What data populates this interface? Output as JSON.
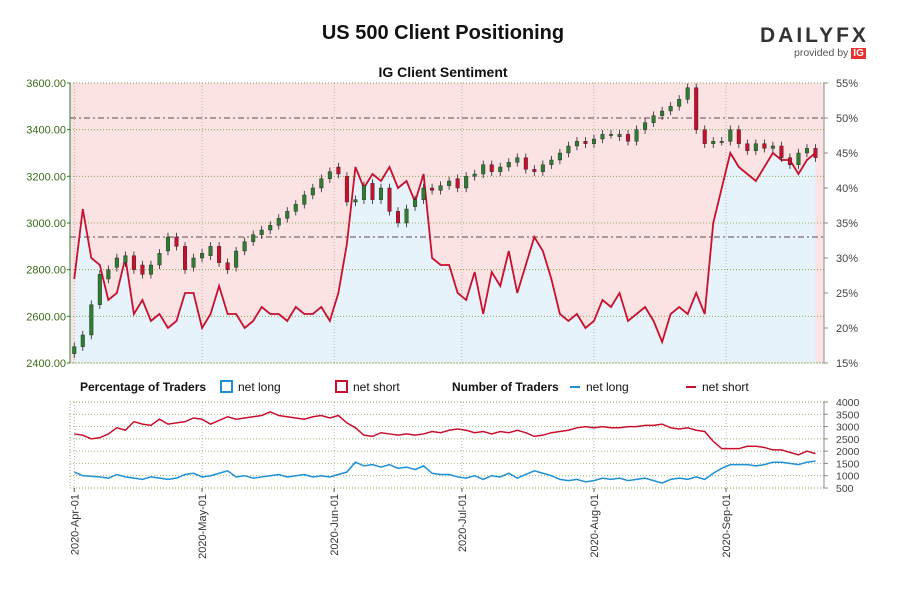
{
  "title": "US 500 Client Positioning",
  "logo": {
    "brand_a": "DAILY",
    "brand_b": "FX",
    "provided": "provided by",
    "ig": "IG"
  },
  "chart_data": {
    "type": "line",
    "subtitle": "IG Client Sentiment",
    "price_axis": {
      "ticks": [
        "2400.00",
        "2600.00",
        "2800.00",
        "3000.00",
        "3200.00",
        "3400.00",
        "3600.00"
      ],
      "ylim": [
        2400,
        3600
      ]
    },
    "pct_axis": {
      "ticks": [
        "15%",
        "20%",
        "25%",
        "30%",
        "35%",
        "40%",
        "45%",
        "50%",
        "55%"
      ],
      "ylim": [
        15,
        55
      ]
    },
    "count_axis": {
      "ticks": [
        "500",
        "1000",
        "1500",
        "2000",
        "2500",
        "3000",
        "3500",
        "4000"
      ],
      "ylim": [
        500,
        4000
      ]
    },
    "x_ticks": [
      "2020-Apr-01",
      "2020-May-01",
      "2020-Jun-01",
      "2020-Jul-01",
      "2020-Aug-01",
      "2020-Sep-01"
    ],
    "x_tick_days": [
      0,
      30,
      61,
      91,
      122,
      153
    ],
    "x_range_days": [
      -1,
      176
    ],
    "reference_lines": {
      "price": [
        3450,
        2940
      ]
    },
    "legend": {
      "pct_title": "Percentage of Traders",
      "count_title": "Number of Traders",
      "net_long": "net long",
      "net_short": "net short"
    },
    "colors": {
      "net_long": "#1e90d6",
      "net_short": "#c8102e",
      "up": "#2e7d32",
      "down": "#c8102e",
      "long_fill": "#e6f3fb",
      "short_fill": "#fbe3e4"
    },
    "grid": true,
    "series": {
      "days": [
        0,
        2,
        4,
        6,
        8,
        10,
        12,
        14,
        16,
        18,
        20,
        22,
        24,
        26,
        28,
        30,
        32,
        34,
        36,
        38,
        40,
        42,
        44,
        46,
        48,
        50,
        52,
        54,
        56,
        58,
        60,
        62,
        64,
        66,
        68,
        70,
        72,
        74,
        76,
        78,
        80,
        82,
        84,
        86,
        88,
        90,
        92,
        94,
        96,
        98,
        100,
        102,
        104,
        106,
        108,
        110,
        112,
        114,
        116,
        118,
        120,
        122,
        124,
        126,
        128,
        130,
        132,
        134,
        136,
        138,
        140,
        142,
        144,
        146,
        148,
        150,
        152,
        154,
        156,
        158,
        160,
        162,
        164,
        166,
        168,
        170,
        172,
        174
      ],
      "net_long_pct": [
        27,
        37,
        30,
        29,
        24,
        25,
        30,
        22,
        24,
        21,
        22,
        20,
        21,
        25,
        25,
        20,
        22,
        26,
        22,
        22,
        20,
        21,
        23,
        22,
        22,
        21,
        23,
        22,
        22,
        23,
        21,
        25,
        32,
        43,
        40,
        42,
        41,
        43,
        40,
        41,
        38,
        42,
        30,
        29,
        29,
        25,
        24,
        28,
        22,
        28,
        26,
        31,
        25,
        29,
        33,
        31,
        27,
        22,
        21,
        22,
        20,
        21,
        24,
        23,
        25,
        21,
        22,
        23,
        21,
        18,
        22,
        23,
        22,
        25,
        22,
        35,
        40,
        45,
        43,
        42,
        41,
        43,
        45,
        44,
        44,
        42,
        44,
        45
      ],
      "net_long_count": [
        1150,
        1000,
        980,
        950,
        900,
        1050,
        950,
        900,
        850,
        950,
        900,
        850,
        900,
        1050,
        1100,
        950,
        1000,
        1100,
        1200,
        950,
        1000,
        900,
        950,
        1000,
        1050,
        950,
        1000,
        1050,
        950,
        1000,
        950,
        1050,
        1150,
        1550,
        1400,
        1450,
        1350,
        1450,
        1300,
        1350,
        1250,
        1400,
        1100,
        1050,
        1050,
        950,
        900,
        1000,
        850,
        1000,
        950,
        1100,
        900,
        1050,
        1200,
        1100,
        1000,
        850,
        800,
        850,
        750,
        800,
        900,
        850,
        900,
        800,
        850,
        900,
        800,
        700,
        850,
        900,
        850,
        950,
        850,
        1100,
        1300,
        1450,
        1450,
        1450,
        1400,
        1450,
        1550,
        1550,
        1500,
        1450,
        1550,
        1600
      ],
      "net_short_count": [
        2700,
        2650,
        2500,
        2550,
        2700,
        2950,
        2850,
        3200,
        3100,
        3050,
        3300,
        3100,
        3150,
        3200,
        3350,
        3300,
        3100,
        3250,
        3400,
        3300,
        3350,
        3400,
        3450,
        3600,
        3450,
        3400,
        3350,
        3300,
        3400,
        3450,
        3350,
        3450,
        3150,
        2950,
        2650,
        2600,
        2750,
        2700,
        2650,
        2700,
        2650,
        2700,
        2800,
        2750,
        2850,
        2900,
        2850,
        2750,
        2800,
        2700,
        2800,
        2750,
        2850,
        2750,
        2600,
        2650,
        2750,
        2800,
        2850,
        2950,
        3000,
        2950,
        3000,
        2950,
        2950,
        3000,
        3000,
        3050,
        3050,
        3100,
        2950,
        2900,
        2950,
        2850,
        2800,
        2400,
        2100,
        2100,
        2100,
        2200,
        2200,
        2150,
        2050,
        2050,
        1950,
        1850,
        2000,
        1900
      ]
    },
    "price": {
      "days": [
        0,
        2,
        4,
        6,
        8,
        10,
        12,
        14,
        16,
        18,
        20,
        22,
        24,
        26,
        28,
        30,
        32,
        34,
        36,
        38,
        40,
        42,
        44,
        46,
        48,
        50,
        52,
        54,
        56,
        58,
        60,
        62,
        64,
        66,
        68,
        70,
        72,
        74,
        76,
        78,
        80,
        82,
        84,
        86,
        88,
        90,
        92,
        94,
        96,
        98,
        100,
        102,
        104,
        106,
        108,
        110,
        112,
        114,
        116,
        118,
        120,
        122,
        124,
        126,
        128,
        130,
        132,
        134,
        136,
        138,
        140,
        142,
        144,
        146,
        148,
        150,
        152,
        154,
        156,
        158,
        160,
        162,
        164,
        166,
        168,
        170,
        172,
        174
      ],
      "close": [
        2470,
        2520,
        2650,
        2780,
        2800,
        2850,
        2860,
        2800,
        2780,
        2820,
        2870,
        2940,
        2900,
        2800,
        2850,
        2870,
        2900,
        2830,
        2800,
        2880,
        2920,
        2950,
        2970,
        2990,
        3020,
        3050,
        3080,
        3120,
        3150,
        3190,
        3220,
        3210,
        3090,
        3100,
        3160,
        3100,
        3150,
        3050,
        3000,
        3060,
        3100,
        3150,
        3140,
        3160,
        3180,
        3150,
        3200,
        3210,
        3250,
        3220,
        3240,
        3260,
        3280,
        3230,
        3220,
        3250,
        3270,
        3300,
        3330,
        3350,
        3340,
        3360,
        3380,
        3380,
        3380,
        3350,
        3400,
        3430,
        3460,
        3480,
        3500,
        3530,
        3580,
        3400,
        3340,
        3350,
        3350,
        3400,
        3340,
        3310,
        3340,
        3320,
        3330,
        3280,
        3250,
        3300,
        3320,
        3280
      ],
      "open": [
        2440,
        2470,
        2520,
        2650,
        2760,
        2810,
        2830,
        2860,
        2820,
        2780,
        2820,
        2880,
        2940,
        2900,
        2810,
        2850,
        2860,
        2900,
        2830,
        2810,
        2880,
        2920,
        2950,
        2970,
        2990,
        3020,
        3050,
        3080,
        3120,
        3150,
        3190,
        3240,
        3200,
        3090,
        3100,
        3170,
        3100,
        3150,
        3050,
        3000,
        3070,
        3100,
        3150,
        3140,
        3160,
        3190,
        3150,
        3200,
        3210,
        3250,
        3220,
        3240,
        3260,
        3280,
        3230,
        3220,
        3250,
        3270,
        3300,
        3330,
        3350,
        3340,
        3360,
        3380,
        3370,
        3380,
        3350,
        3400,
        3430,
        3460,
        3480,
        3500,
        3530,
        3580,
        3400,
        3340,
        3350,
        3350,
        3400,
        3340,
        3310,
        3340,
        3320,
        3330,
        3280,
        3250,
        3300,
        3320
      ]
    }
  }
}
